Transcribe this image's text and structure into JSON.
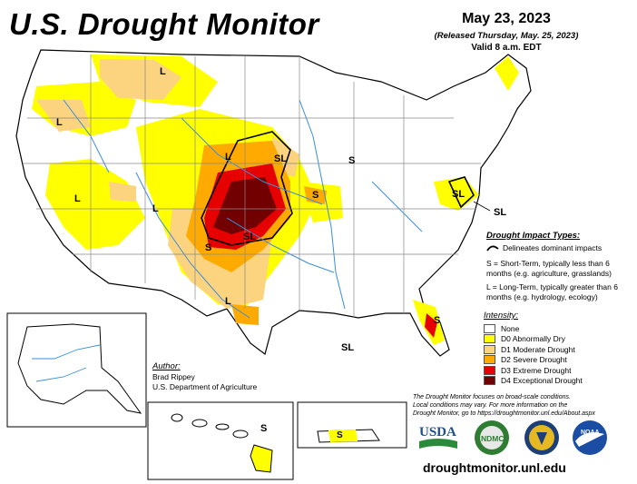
{
  "header": {
    "title": "U.S. Drought Monitor",
    "date": "May 23, 2023",
    "released": "(Released Thursday, May. 25, 2023)",
    "valid": "Valid 8 a.m. EDT"
  },
  "impact_types": {
    "heading": "Drought Impact Types:",
    "items": [
      {
        "symbol": "~",
        "icon": "impact-boundary-line-icon",
        "text": "Delineates dominant impacts"
      },
      {
        "symbol": "S",
        "text": "S = Short-Term, typically less than 6 months (e.g. agriculture, grasslands)"
      },
      {
        "symbol": "L",
        "text": "L = Long-Term, typically greater than 6 months (e.g. hydrology, ecology)"
      }
    ]
  },
  "intensity": {
    "heading": "Intensity:",
    "items": [
      {
        "label": "None",
        "color": "#ffffff"
      },
      {
        "label": "D0 Abnormally Dry",
        "color": "#ffff00"
      },
      {
        "label": "D1 Moderate Drought",
        "color": "#fcd37f"
      },
      {
        "label": "D2 Severe Drought",
        "color": "#ffaa00"
      },
      {
        "label": "D3 Extreme Drought",
        "color": "#e60000"
      },
      {
        "label": "D4 Exceptional Drought",
        "color": "#730000"
      }
    ]
  },
  "author": {
    "heading": "Author:",
    "name": "Brad Rippey",
    "org": "U.S. Department of Agriculture"
  },
  "note": {
    "line1": "The Drought Monitor focuses on broad-scale conditions.",
    "line2": "Local conditions may vary. For more information on the",
    "line3": "Drought Monitor, go to https://droughtmonitor.unl.edu/About.aspx"
  },
  "logos": {
    "usda": "USDA",
    "ndmc": "NDMC",
    "noaa": "NOAA"
  },
  "website": "droughtmonitor.unl.edu",
  "map_labels": {
    "L": "L",
    "S": "S",
    "SL": "SL"
  },
  "colors": {
    "river": "#3a8fd9",
    "state_border": "#888888",
    "coast": "#000000"
  }
}
